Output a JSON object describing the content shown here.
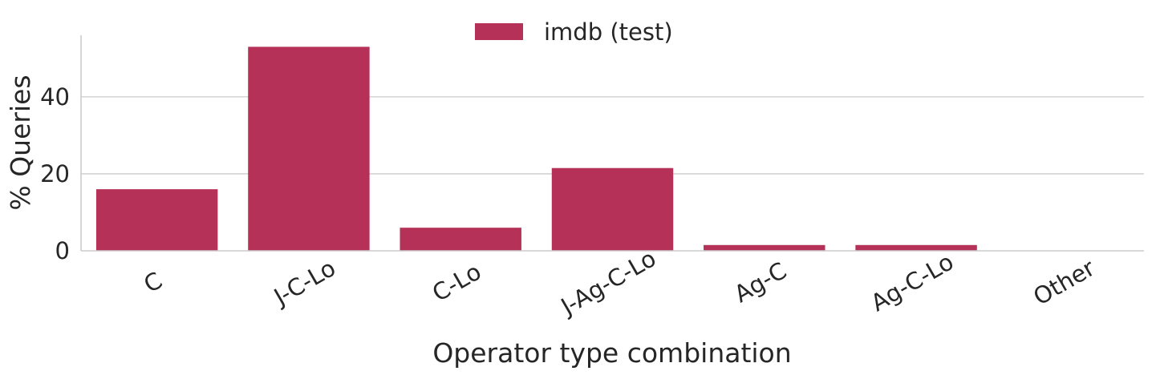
{
  "chart_data": {
    "type": "bar",
    "categories": [
      "C",
      "J-C-Lo",
      "C-Lo",
      "J-Ag-C-Lo",
      "Ag-C",
      "Ag-C-Lo",
      "Other"
    ],
    "series": [
      {
        "name": "imdb (test)",
        "values": [
          16,
          53,
          6,
          21.5,
          1.5,
          1.5,
          0
        ]
      }
    ],
    "title": "",
    "xlabel": "Operator type combination",
    "ylabel": "% Queries",
    "ylim": [
      0,
      56
    ],
    "yticks": [
      0,
      20,
      40
    ],
    "grid": "horizontal",
    "legend_position": "top-center",
    "colors": {
      "bar": "#b53157",
      "grid": "#cccccc",
      "axis": "#cccccc",
      "text": "#262626"
    }
  }
}
